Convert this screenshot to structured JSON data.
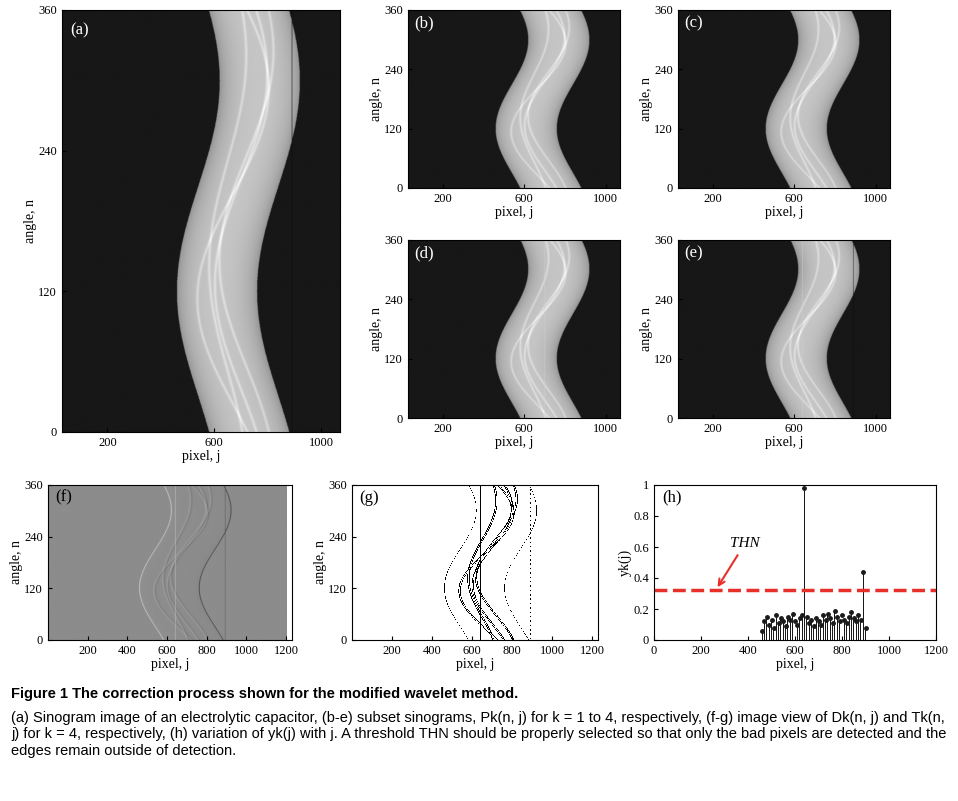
{
  "chart_data": [
    {
      "type": "sinogram",
      "panel": "(a)",
      "xlabel": "pixel, j",
      "ylabel": "angle, n",
      "xlim": [
        30,
        1070
      ],
      "xticks": [
        200,
        600,
        1000
      ],
      "ylim": [
        0,
        360
      ],
      "yticks": [
        0,
        120,
        240,
        360
      ]
    },
    {
      "type": "sinogram",
      "panel": "(b)",
      "xlabel": "pixel, j",
      "ylabel": "angle, n",
      "xlim": [
        30,
        1070
      ],
      "xticks": [
        200,
        600,
        1000
      ],
      "ylim": [
        0,
        360
      ],
      "yticks": [
        0,
        120,
        240,
        360
      ]
    },
    {
      "type": "sinogram",
      "panel": "(c)",
      "xlabel": "pixel, j",
      "ylabel": "angle, n",
      "xlim": [
        30,
        1070
      ],
      "xticks": [
        200,
        600,
        1000
      ],
      "ylim": [
        0,
        360
      ],
      "yticks": [
        0,
        120,
        240,
        360
      ]
    },
    {
      "type": "sinogram",
      "panel": "(d)",
      "xlabel": "pixel, j",
      "ylabel": "angle, n",
      "xlim": [
        30,
        1070
      ],
      "xticks": [
        200,
        600,
        1000
      ],
      "ylim": [
        0,
        360
      ],
      "yticks": [
        0,
        120,
        240,
        360
      ]
    },
    {
      "type": "sinogram",
      "panel": "(e)",
      "xlabel": "pixel, j",
      "ylabel": "angle, n",
      "xlim": [
        30,
        1070
      ],
      "xticks": [
        200,
        600,
        1000
      ],
      "ylim": [
        0,
        360
      ],
      "yticks": [
        0,
        120,
        240,
        360
      ]
    },
    {
      "type": "difference",
      "panel": "(f)",
      "xlabel": "pixel, j",
      "ylabel": "angle, n",
      "xlim": [
        1,
        1230
      ],
      "xticks": [
        200,
        400,
        600,
        800,
        1000,
        1200
      ],
      "ylim": [
        0,
        360
      ],
      "yticks": [
        0,
        120,
        240,
        360
      ]
    },
    {
      "type": "binary",
      "panel": "(g)",
      "xlabel": "pixel, j",
      "ylabel": "angle, n",
      "xlim": [
        1,
        1230
      ],
      "xticks": [
        200,
        400,
        600,
        800,
        1000,
        1200
      ],
      "ylim": [
        0,
        360
      ],
      "yticks": [
        0,
        120,
        240,
        360
      ]
    },
    {
      "type": "bar",
      "panel": "(h)",
      "xlabel": "pixel, j",
      "ylabel": "yk(j)",
      "xlim": [
        0,
        1200
      ],
      "xticks": [
        0,
        200,
        400,
        600,
        800,
        1000,
        1200
      ],
      "ylim": [
        0,
        1
      ],
      "yticks": [
        0,
        0.2,
        0.4,
        0.6,
        0.8,
        1
      ],
      "color": "#1a1a1a",
      "marker": "o",
      "x": [
        460,
        470,
        480,
        490,
        500,
        510,
        520,
        530,
        540,
        550,
        560,
        570,
        580,
        590,
        600,
        610,
        620,
        630,
        640,
        650,
        660,
        670,
        680,
        690,
        700,
        710,
        720,
        730,
        740,
        750,
        760,
        770,
        780,
        790,
        800,
        810,
        820,
        830,
        840,
        850,
        860,
        870,
        880,
        890,
        900
      ],
      "values": [
        0.06,
        0.12,
        0.15,
        0.1,
        0.13,
        0.08,
        0.16,
        0.11,
        0.14,
        0.12,
        0.09,
        0.15,
        0.13,
        0.17,
        0.12,
        0.1,
        0.14,
        0.16,
        0.98,
        0.15,
        0.11,
        0.13,
        0.09,
        0.14,
        0.12,
        0.1,
        0.16,
        0.13,
        0.17,
        0.14,
        0.11,
        0.19,
        0.15,
        0.12,
        0.16,
        0.13,
        0.11,
        0.15,
        0.18,
        0.14,
        0.12,
        0.16,
        0.13,
        0.44,
        0.08
      ],
      "threshold": {
        "value": 0.325,
        "label": "THN",
        "color": "#e8302a",
        "line_style": "dashed"
      }
    }
  ],
  "caption": {
    "title": "Figure 1 The correction process shown for the modified wavelet method.",
    "text": "(a) Sinogram image of an electrolytic capacitor, (b-e) subset sinograms, Pk(n, j) for k = 1 to 4, respectively, (f-g) image view of Dk(n, j) and Tk(n, j) for k = 4, respectively, (h) variation of yk(j) with j. A threshold THN should be properly selected so that only the bad pixels are detected and the edges remain outside of detection."
  }
}
